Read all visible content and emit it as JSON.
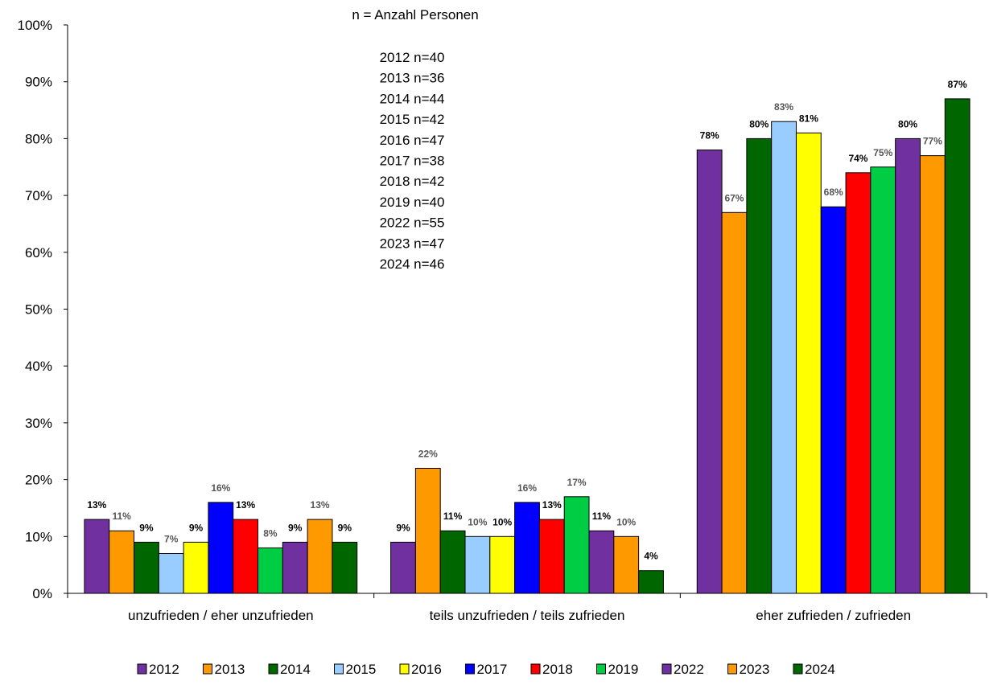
{
  "chart_data": {
    "type": "bar",
    "title": "",
    "xlabel": "",
    "ylabel": "",
    "ylim": [
      0,
      100
    ],
    "y_ticks": [
      "0%",
      "10%",
      "20%",
      "30%",
      "40%",
      "50%",
      "60%",
      "70%",
      "80%",
      "90%",
      "100%"
    ],
    "categories": [
      "unzufrieden / eher unzufrieden",
      "teils unzufrieden / teils zufrieden",
      "eher zufrieden / zufrieden"
    ],
    "annotation_title": "n = Anzahl Personen",
    "annotation_lines": [
      "2012 n=40",
      "2013 n=36",
      "2014 n=44",
      "2015 n=42",
      "2016 n=47",
      "2017 n=38",
      "2018 n=42",
      "2019 n=40",
      "2022 n=55",
      "2023 n=47",
      "2024 n=46"
    ],
    "legend_position": "bottom",
    "grid": false,
    "series": [
      {
        "name": "2012",
        "color": "#7030A0",
        "values": [
          13,
          9,
          78
        ],
        "labels": [
          "13%",
          "9%",
          "78%"
        ]
      },
      {
        "name": "2013",
        "color": "#FF9900",
        "values": [
          11,
          22,
          67
        ],
        "labels": [
          "11%",
          "22%",
          "67%"
        ]
      },
      {
        "name": "2014",
        "color": "#006600",
        "values": [
          9,
          11,
          80
        ],
        "labels": [
          "9%",
          "11%",
          "80%"
        ]
      },
      {
        "name": "2015",
        "color": "#99CCFF",
        "values": [
          7,
          10,
          83
        ],
        "labels": [
          "7%",
          "10%",
          "83%"
        ]
      },
      {
        "name": "2016",
        "color": "#FFFF00",
        "values": [
          9,
          10,
          81
        ],
        "labels": [
          "9%",
          "10%",
          "81%"
        ]
      },
      {
        "name": "2017",
        "color": "#0000FF",
        "values": [
          16,
          16,
          68
        ],
        "labels": [
          "16%",
          "16%",
          "68%"
        ]
      },
      {
        "name": "2018",
        "color": "#FF0000",
        "values": [
          13,
          13,
          74
        ],
        "labels": [
          "13%",
          "13%",
          "74%"
        ]
      },
      {
        "name": "2019",
        "color": "#00CC44",
        "values": [
          8,
          17,
          75
        ],
        "labels": [
          "8%",
          "17%",
          "75%"
        ]
      },
      {
        "name": "2022",
        "color": "#7030A0",
        "values": [
          9,
          11,
          80
        ],
        "labels": [
          "9%",
          "11%",
          "80%"
        ]
      },
      {
        "name": "2023",
        "color": "#FF9900",
        "values": [
          13,
          10,
          77
        ],
        "labels": [
          "13%",
          "10%",
          "77%"
        ]
      },
      {
        "name": "2024",
        "color": "#006600",
        "values": [
          9,
          4,
          87
        ],
        "labels": [
          "9%",
          "4%",
          "87%"
        ]
      }
    ]
  }
}
